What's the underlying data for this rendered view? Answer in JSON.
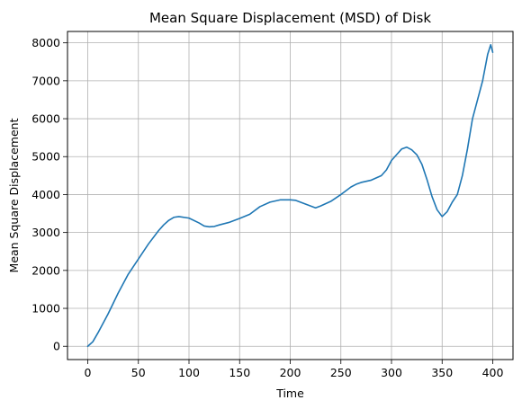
{
  "chart_data": {
    "type": "line",
    "title": "Mean Square Displacement (MSD) of Disk",
    "xlabel": "Time",
    "ylabel": "Mean Square Displacement",
    "xlim": [
      -20,
      420
    ],
    "ylim": [
      -350,
      8300
    ],
    "xticks": [
      0,
      50,
      100,
      150,
      200,
      250,
      300,
      350,
      400
    ],
    "yticks": [
      0,
      1000,
      2000,
      3000,
      4000,
      5000,
      6000,
      7000,
      8000
    ],
    "grid": true,
    "series": [
      {
        "color": "#1f77b4",
        "x": [
          0,
          5,
          10,
          20,
          30,
          40,
          50,
          60,
          70,
          75,
          80,
          85,
          90,
          100,
          110,
          115,
          120,
          125,
          130,
          140,
          150,
          160,
          170,
          180,
          190,
          200,
          205,
          210,
          215,
          220,
          225,
          230,
          240,
          250,
          260,
          265,
          270,
          280,
          290,
          295,
          300,
          305,
          310,
          315,
          320,
          325,
          330,
          335,
          340,
          345,
          350,
          355,
          360,
          365,
          370,
          375,
          380,
          385,
          390,
          395,
          398,
          400
        ],
        "y": [
          0,
          120,
          350,
          850,
          1400,
          1900,
          2300,
          2700,
          3050,
          3200,
          3320,
          3400,
          3420,
          3380,
          3250,
          3170,
          3150,
          3160,
          3200,
          3270,
          3370,
          3480,
          3680,
          3800,
          3860,
          3860,
          3850,
          3800,
          3750,
          3700,
          3650,
          3700,
          3820,
          4000,
          4200,
          4270,
          4320,
          4380,
          4500,
          4650,
          4900,
          5050,
          5200,
          5250,
          5180,
          5050,
          4800,
          4400,
          3950,
          3600,
          3420,
          3550,
          3800,
          4000,
          4500,
          5200,
          6000,
          6500,
          7000,
          7700,
          7950,
          7750
        ]
      }
    ]
  }
}
